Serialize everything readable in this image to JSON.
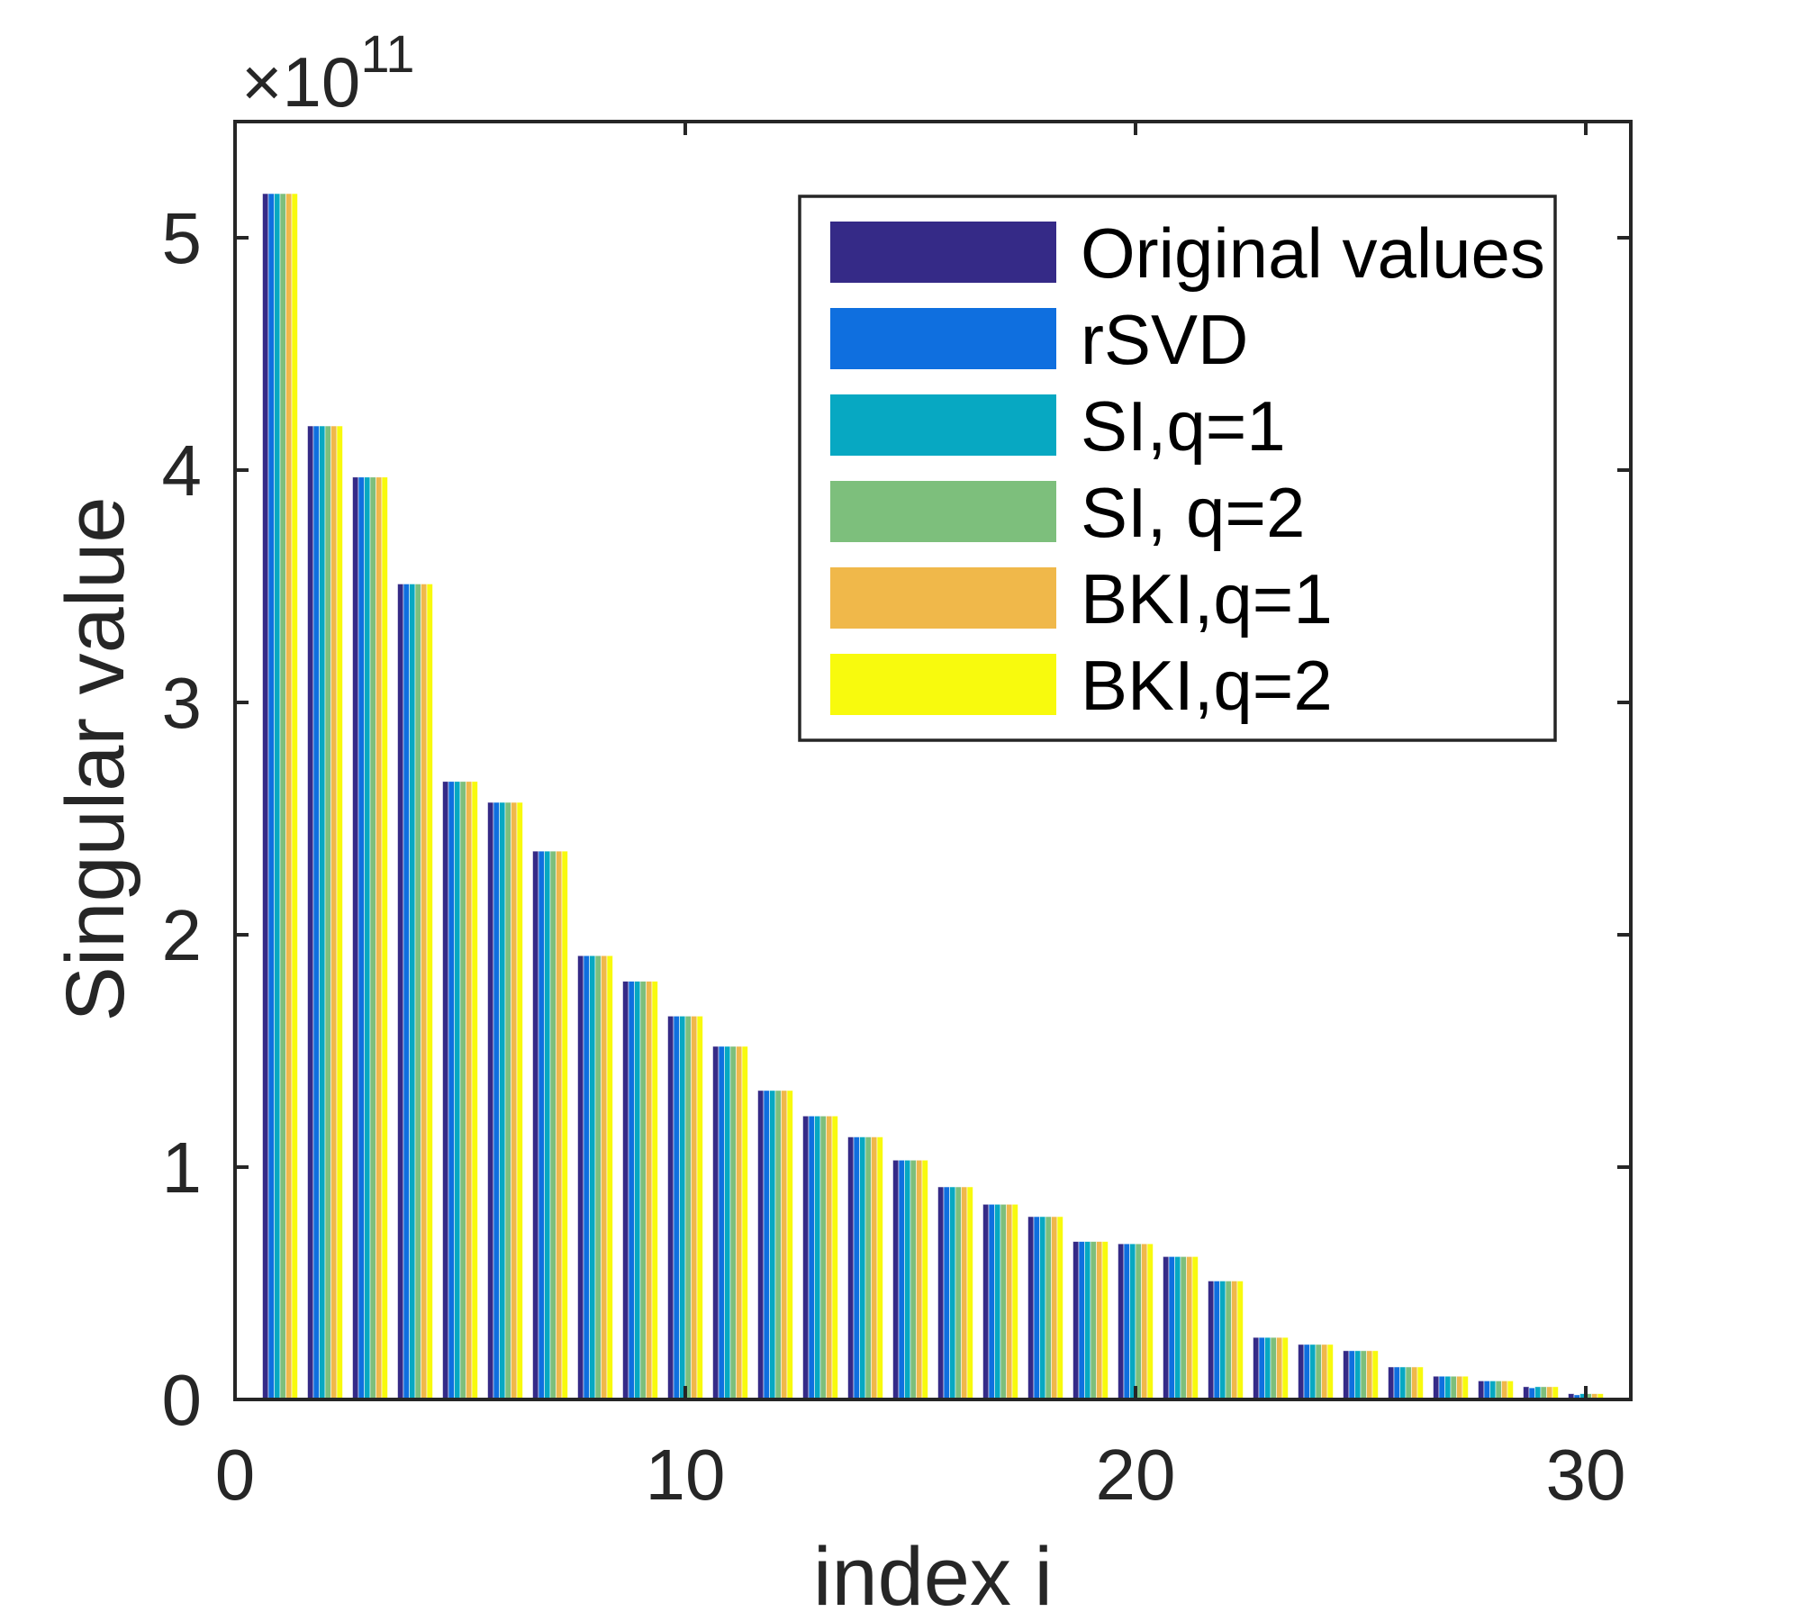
{
  "chart_data": {
    "type": "bar",
    "title": "",
    "xlabel": "index i",
    "ylabel": "Singular value",
    "y_exponent_label": {
      "prefix": "×10",
      "exponent": "11"
    },
    "xlim": [
      0,
      31
    ],
    "ylim": [
      0,
      5.5
    ],
    "xticks": [
      0,
      10,
      20,
      30
    ],
    "xtick_labels": [
      "0",
      "10",
      "20",
      "30"
    ],
    "yticks": [
      0,
      1,
      2,
      3,
      4,
      5
    ],
    "ytick_labels": [
      "0",
      "1",
      "2",
      "3",
      "4",
      "5"
    ],
    "grid": false,
    "legend_position": "top-right",
    "categories": [
      1,
      2,
      3,
      4,
      5,
      6,
      7,
      8,
      9,
      10,
      11,
      12,
      13,
      14,
      15,
      16,
      17,
      18,
      19,
      20,
      21,
      22,
      23,
      24,
      25,
      26,
      27,
      28,
      29,
      30
    ],
    "series": [
      {
        "name": "Original values",
        "color": "#352A87",
        "values": [
          5.19,
          4.19,
          3.97,
          3.51,
          2.66,
          2.57,
          2.36,
          1.91,
          1.8,
          1.65,
          1.52,
          1.33,
          1.22,
          1.13,
          1.03,
          0.915,
          0.84,
          0.787,
          0.68,
          0.67,
          0.615,
          0.51,
          0.267,
          0.237,
          0.21,
          0.14,
          0.1,
          0.08,
          0.055,
          0.025
        ]
      },
      {
        "name": "rSVD",
        "color": "#0F6FDF",
        "values": [
          5.19,
          4.19,
          3.97,
          3.51,
          2.66,
          2.57,
          2.36,
          1.91,
          1.8,
          1.65,
          1.52,
          1.33,
          1.22,
          1.13,
          1.03,
          0.915,
          0.84,
          0.787,
          0.68,
          0.67,
          0.615,
          0.51,
          0.267,
          0.237,
          0.21,
          0.14,
          0.1,
          0.08,
          0.05,
          0.02
        ]
      },
      {
        "name": "SI,q=1",
        "color": "#07A8C2",
        "values": [
          5.19,
          4.19,
          3.97,
          3.51,
          2.66,
          2.57,
          2.36,
          1.91,
          1.8,
          1.65,
          1.52,
          1.33,
          1.22,
          1.13,
          1.03,
          0.915,
          0.84,
          0.787,
          0.68,
          0.67,
          0.615,
          0.51,
          0.267,
          0.237,
          0.21,
          0.14,
          0.1,
          0.08,
          0.055,
          0.025
        ]
      },
      {
        "name": "SI, q=2",
        "color": "#7DBF7C",
        "values": [
          5.19,
          4.19,
          3.97,
          3.51,
          2.66,
          2.57,
          2.36,
          1.91,
          1.8,
          1.65,
          1.52,
          1.33,
          1.22,
          1.13,
          1.03,
          0.915,
          0.84,
          0.787,
          0.68,
          0.67,
          0.615,
          0.51,
          0.267,
          0.237,
          0.21,
          0.14,
          0.1,
          0.08,
          0.055,
          0.025
        ]
      },
      {
        "name": "BKI,q=1",
        "color": "#F0B84A",
        "values": [
          5.19,
          4.19,
          3.97,
          3.51,
          2.66,
          2.57,
          2.36,
          1.91,
          1.8,
          1.65,
          1.52,
          1.33,
          1.22,
          1.13,
          1.03,
          0.915,
          0.84,
          0.787,
          0.68,
          0.67,
          0.615,
          0.51,
          0.267,
          0.237,
          0.21,
          0.14,
          0.1,
          0.08,
          0.055,
          0.025
        ]
      },
      {
        "name": "BKI,q=2",
        "color": "#F8FA0D",
        "values": [
          5.19,
          4.19,
          3.97,
          3.51,
          2.66,
          2.57,
          2.36,
          1.91,
          1.8,
          1.65,
          1.52,
          1.33,
          1.22,
          1.13,
          1.03,
          0.915,
          0.84,
          0.787,
          0.68,
          0.67,
          0.615,
          0.51,
          0.267,
          0.237,
          0.21,
          0.14,
          0.1,
          0.08,
          0.055,
          0.025
        ]
      }
    ]
  }
}
